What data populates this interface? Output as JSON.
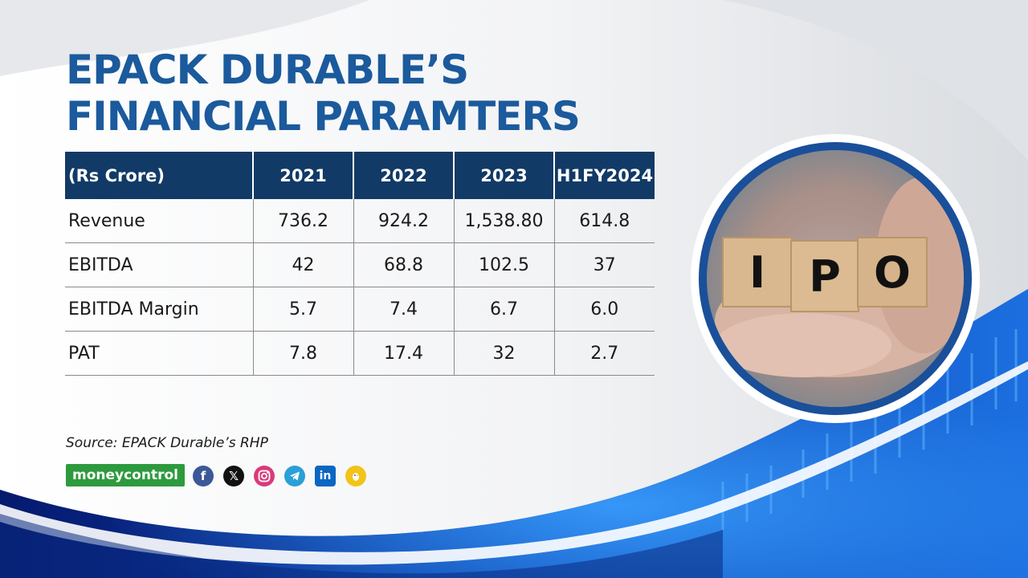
{
  "title": {
    "line1": "EPACK DURABLE’S",
    "line2": "FINANCIAL PARAMTERS"
  },
  "table": {
    "headers": [
      "(Rs Crore)",
      "2021",
      "2022",
      "2023",
      "H1FY2024"
    ],
    "rows": [
      {
        "label": "Revenue",
        "values": [
          "736.2",
          "924.2",
          "1,538.80",
          "614.8"
        ]
      },
      {
        "label": "EBITDA",
        "values": [
          "42",
          "68.8",
          "102.5",
          "37"
        ]
      },
      {
        "label": "EBITDA Margin",
        "values": [
          "5.7",
          "7.4",
          "6.7",
          "6.0"
        ]
      },
      {
        "label": "PAT",
        "values": [
          "7.8",
          "17.4",
          "32",
          "2.7"
        ]
      }
    ]
  },
  "source": "Source: EPACK Durable’s RHP",
  "brand": {
    "part1": "money",
    "part2": "control"
  },
  "image_blocks": [
    "I",
    "P",
    "O"
  ],
  "social_icons": [
    "facebook-icon",
    "x-icon",
    "instagram-icon",
    "telegram-icon",
    "linkedin-icon",
    "koo-icon"
  ],
  "colors": {
    "title": "#1b5a9c",
    "header_bg": "#123a66",
    "brand_green": "#2e9a3e",
    "wave_blue": "#0a3d9e"
  }
}
